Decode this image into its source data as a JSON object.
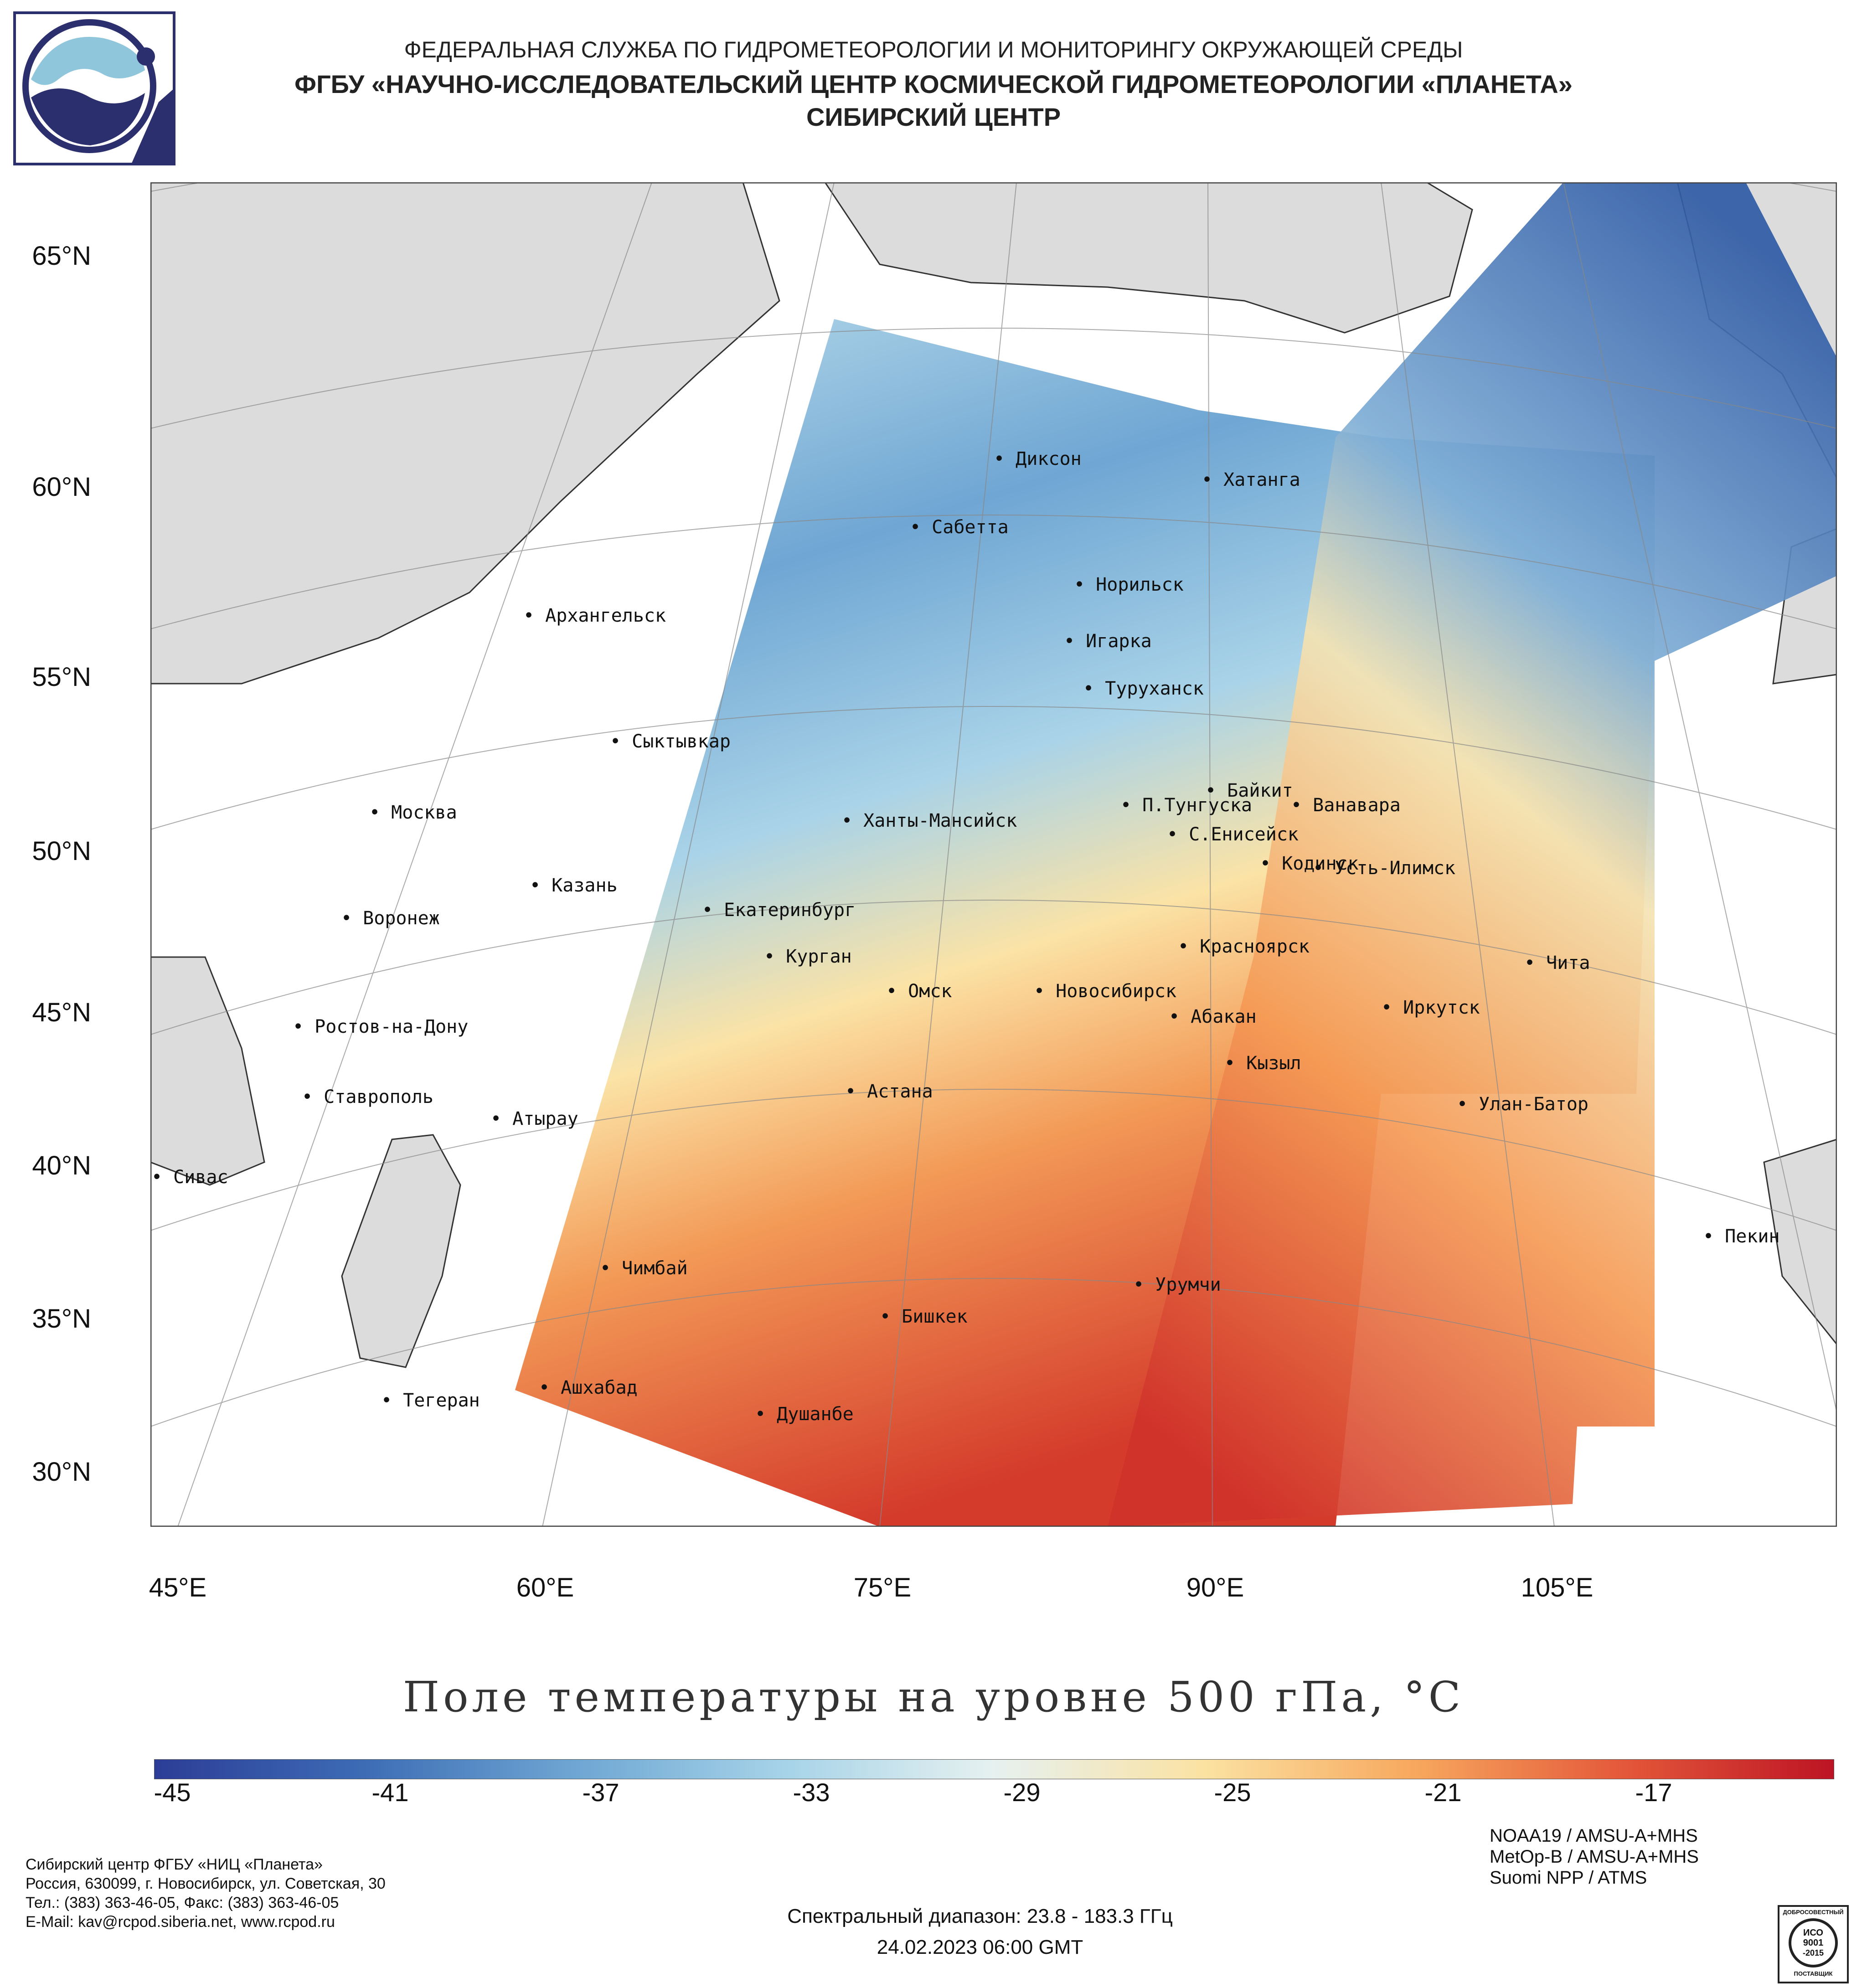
{
  "header": {
    "line1": "ФЕДЕРАЛЬНАЯ СЛУЖБА ПО ГИДРОМЕТЕОРОЛОГИИ И МОНИТОРИНГУ ОКРУЖАЮЩЕЙ СРЕДЫ",
    "line2": "ФГБУ «НАУЧНО-ИССЛЕДОВАТЕЛЬСКИЙ ЦЕНТР КОСМИЧЕСКОЙ ГИДРОМЕТЕОРОЛОГИИ «ПЛАНЕТА»",
    "line3": "СИБИРСКИЙ ЦЕНТР"
  },
  "map": {
    "lat_labels": [
      "65°N",
      "60°N",
      "55°N",
      "50°N",
      "45°N",
      "40°N",
      "35°N",
      "30°N"
    ],
    "lon_labels": [
      "45°E",
      "60°E",
      "75°E",
      "90°E",
      "105°E"
    ],
    "cities": [
      "Диксон",
      "Хатанга",
      "Сабетта",
      "Норильск",
      "Архангельск",
      "Игарка",
      "Туруханск",
      "Сыктывкар",
      "Байкит",
      "Москва",
      "П.Тунгуска",
      "Ванавара",
      "Ханты-Мансийск",
      "С.Енисейск",
      "Кодинск",
      "Усть-Илимск",
      "Казань",
      "Екатеринбург",
      "Воронеж",
      "Красноярск",
      "Курган",
      "Чита",
      "Омск",
      "Новосибирск",
      "Ростов-на-Дону",
      "Иркутск",
      "Абакан",
      "Кызыл",
      "Ставрополь",
      "Астана",
      "Улан-Батор",
      "Атырау",
      "Сивас",
      "Пекин",
      "Чимбай",
      "Урумчи",
      "Бишкек",
      "Ашхабад",
      "Тегеран",
      "Душанбе"
    ]
  },
  "title": "Поле температуры на уровне 500 гПа, °С",
  "colorbar": {
    "ticks": [
      "-45",
      "-41",
      "-37",
      "-33",
      "-29",
      "-25",
      "-21",
      "-17"
    ],
    "colors": [
      "#2c3d97",
      "#3d6cb5",
      "#6ea6d3",
      "#a6d3e8",
      "#e6f1f0",
      "#fbe2a2",
      "#f7a85e",
      "#e4583a",
      "#bd1424"
    ]
  },
  "footer": {
    "org": [
      "Сибирский центр ФГБУ «НИЦ «Планета»",
      "Россия, 630099, г. Новосибирск, ул. Советская, 30",
      "Тел.: (383) 363-46-05, Факс: (383) 363-46-05",
      "E-Mail: kav@rcpod.siberia.net, www.rcpod.ru"
    ],
    "spectral": "Спектральный диапазон: 23.8 - 183.3 ГГц",
    "datetime": "24.02.2023 06:00 GMT",
    "satellites": [
      "NOAA19 / AMSU-A+MHS",
      "MetOp-B / AMSU-A+MHS",
      "Suomi NPP / ATMS"
    ],
    "iso": {
      "top": "ДОБРОСОВЕСТНЫЙ",
      "l1": "ИСО",
      "l2": "9001",
      "l3": "-2015",
      "bottom": "ПОСТАВЩИК"
    }
  }
}
